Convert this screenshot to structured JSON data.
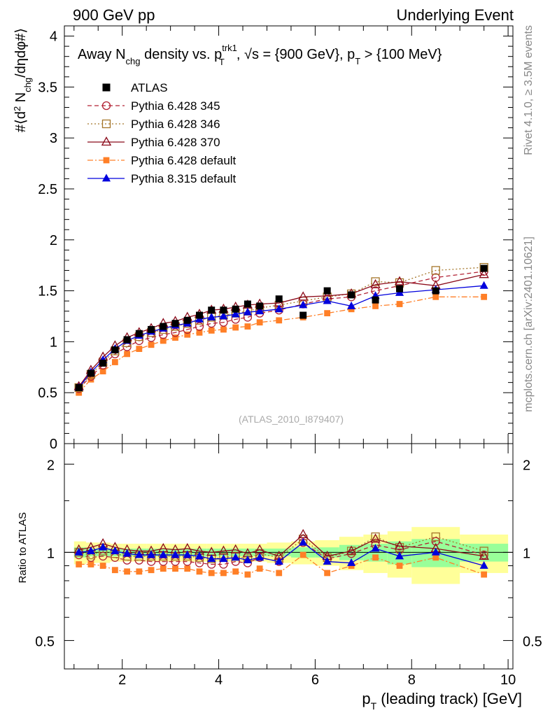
{
  "header": {
    "left": "900 GeV pp",
    "right": "Underlying Event"
  },
  "side": {
    "version": "Rivet 4.1.0, ≥ 3.5M events",
    "site": "mcplots.cern.ch [arXiv:2401.10621]"
  },
  "chart_data": [
    {
      "type": "scatter",
      "title": "Away N_chg density vs. p_T^trk1, √s = {900 GeV}, p_T > {100 MeV}",
      "title_parts": {
        "t1": "Away N",
        "t1sub": "chg",
        "t2": " density vs. p",
        "t2sup": "trk1",
        "t2sub": "T",
        "t3": ", √s = {900 GeV}, p",
        "t3sub": "T",
        "t4": " > {100 MeV}"
      },
      "ylabel": "#⟨d² N_chg/dηdφ#⟩",
      "ylabel_parts": {
        "a": "#⟨d",
        "asup": "2",
        "b": " N",
        "bsub": "chg",
        "c": "/dηdφ#⟩"
      },
      "analysis": "(ATLAS_2010_I879407)",
      "xlim": [
        0.8,
        10.1
      ],
      "ylim": [
        0,
        4.1
      ],
      "yticks": [
        "0",
        "0.5",
        "1",
        "1.5",
        "2",
        "2.5",
        "3",
        "3.5",
        "4"
      ],
      "x": [
        1.1,
        1.35,
        1.6,
        1.85,
        2.1,
        2.35,
        2.6,
        2.85,
        3.1,
        3.35,
        3.6,
        3.85,
        4.1,
        4.35,
        4.6,
        4.85,
        5.25,
        5.75,
        6.25,
        6.75,
        7.25,
        7.75,
        8.5,
        9.5
      ],
      "series": [
        {
          "name": "ATLAS",
          "color": "#000000",
          "marker": "square",
          "line": "none",
          "values": [
            0.55,
            0.69,
            0.79,
            0.92,
            1.02,
            1.08,
            1.12,
            1.15,
            1.18,
            1.21,
            1.26,
            1.31,
            1.31,
            1.32,
            1.37,
            1.35,
            1.42,
            1.26,
            1.5,
            1.46,
            1.41,
            1.52,
            1.5,
            1.72
          ]
        },
        {
          "name": "Pythia 6.428 345",
          "color": "#b22234",
          "marker": "circle-open",
          "line": "dashed",
          "values": [
            0.54,
            0.66,
            0.77,
            0.88,
            0.95,
            1.01,
            1.04,
            1.07,
            1.09,
            1.12,
            1.15,
            1.18,
            1.19,
            1.22,
            1.24,
            1.28,
            1.31,
            1.37,
            1.42,
            1.44,
            1.5,
            1.55,
            1.63,
            1.69
          ]
        },
        {
          "name": "Pythia 6.428 346",
          "color": "#a5762a",
          "marker": "square-open",
          "line": "dotted",
          "values": [
            0.55,
            0.68,
            0.8,
            0.91,
            0.99,
            1.05,
            1.09,
            1.12,
            1.15,
            1.18,
            1.21,
            1.24,
            1.26,
            1.28,
            1.3,
            1.33,
            1.36,
            1.4,
            1.44,
            1.47,
            1.59,
            1.58,
            1.7,
            1.73
          ]
        },
        {
          "name": "Pythia 6.428 370",
          "color": "#8b0a1a",
          "marker": "triangle-open",
          "line": "solid",
          "values": [
            0.56,
            0.72,
            0.85,
            0.96,
            1.04,
            1.09,
            1.13,
            1.18,
            1.2,
            1.24,
            1.27,
            1.31,
            1.32,
            1.34,
            1.36,
            1.37,
            1.38,
            1.44,
            1.45,
            1.47,
            1.56,
            1.59,
            1.55,
            1.66
          ]
        },
        {
          "name": "Pythia 6.428 default",
          "color": "#ff7f27",
          "marker": "square-small",
          "line": "dashdot",
          "values": [
            0.5,
            0.63,
            0.71,
            0.8,
            0.88,
            0.93,
            0.97,
            1.01,
            1.04,
            1.07,
            1.09,
            1.11,
            1.12,
            1.14,
            1.15,
            1.19,
            1.21,
            1.24,
            1.28,
            1.32,
            1.35,
            1.37,
            1.44,
            1.44
          ]
        },
        {
          "name": "Pythia 8.315 default",
          "color": "#0000dd",
          "marker": "triangle",
          "line": "solid",
          "values": [
            0.55,
            0.7,
            0.82,
            0.93,
            1.01,
            1.06,
            1.1,
            1.13,
            1.16,
            1.18,
            1.22,
            1.24,
            1.25,
            1.27,
            1.29,
            1.3,
            1.32,
            1.36,
            1.4,
            1.35,
            1.45,
            1.48,
            1.51,
            1.55
          ]
        }
      ]
    },
    {
      "type": "scatter",
      "ylabel": "Ratio to ATLAS",
      "xlabel": "p_T (leading track) [GeV]",
      "xlabel_parts": {
        "a": "p",
        "asub": "T",
        "b": " (leading track) [GeV]"
      },
      "xlim": [
        0.8,
        10.1
      ],
      "ylim": [
        0.4,
        2.35
      ],
      "yticks": [
        "0.5",
        "1",
        "2"
      ],
      "xticks": [
        "2",
        "4",
        "6",
        "8",
        "10"
      ],
      "bin_edges": [
        1.0,
        1.25,
        1.5,
        1.75,
        2.0,
        2.25,
        2.5,
        2.75,
        3.0,
        3.25,
        3.5,
        3.75,
        4.0,
        4.25,
        4.5,
        4.75,
        5.0,
        5.5,
        6.0,
        6.5,
        7.0,
        7.5,
        8.0,
        9.0,
        10.0
      ],
      "band_stat": [
        0.04,
        0.03,
        0.03,
        0.03,
        0.03,
        0.03,
        0.03,
        0.03,
        0.03,
        0.03,
        0.03,
        0.03,
        0.03,
        0.03,
        0.03,
        0.03,
        0.03,
        0.04,
        0.04,
        0.06,
        0.07,
        0.09,
        0.11,
        0.07
      ],
      "band_total": [
        0.09,
        0.08,
        0.08,
        0.07,
        0.07,
        0.07,
        0.07,
        0.07,
        0.07,
        0.07,
        0.07,
        0.07,
        0.07,
        0.07,
        0.07,
        0.07,
        0.08,
        0.09,
        0.1,
        0.13,
        0.15,
        0.18,
        0.22,
        0.15
      ],
      "series": [
        {
          "name": "Pythia 6.428 345",
          "values": [
            0.98,
            0.96,
            0.97,
            0.96,
            0.94,
            0.94,
            0.93,
            0.93,
            0.93,
            0.93,
            0.92,
            0.91,
            0.91,
            0.93,
            0.92,
            0.96,
            0.93,
            1.08,
            0.95,
            0.99,
            1.06,
            1.02,
            1.09,
            0.98
          ]
        },
        {
          "name": "Pythia 6.428 346",
          "values": [
            1.0,
            0.98,
            1.01,
            0.99,
            0.97,
            0.97,
            0.97,
            0.97,
            0.97,
            0.97,
            0.96,
            0.95,
            0.96,
            0.97,
            0.95,
            0.99,
            0.96,
            1.11,
            0.96,
            1.01,
            1.13,
            1.04,
            1.13,
            1.01
          ]
        },
        {
          "name": "Pythia 6.428 370",
          "values": [
            1.02,
            1.04,
            1.07,
            1.04,
            1.02,
            1.01,
            1.01,
            1.03,
            1.02,
            1.03,
            1.01,
            1.0,
            1.01,
            1.02,
            0.99,
            1.02,
            0.97,
            1.15,
            0.97,
            1.01,
            1.11,
            1.05,
            1.03,
            0.97
          ]
        },
        {
          "name": "Pythia 6.428 default",
          "values": [
            0.91,
            0.91,
            0.9,
            0.87,
            0.86,
            0.86,
            0.87,
            0.88,
            0.88,
            0.88,
            0.86,
            0.85,
            0.85,
            0.86,
            0.84,
            0.88,
            0.85,
            0.98,
            0.85,
            0.9,
            0.96,
            0.9,
            0.96,
            0.84
          ]
        },
        {
          "name": "Pythia 8.315 default",
          "values": [
            1.0,
            1.01,
            1.04,
            1.01,
            0.99,
            0.98,
            0.98,
            0.98,
            0.98,
            0.98,
            0.97,
            0.95,
            0.95,
            0.96,
            0.94,
            0.96,
            0.93,
            1.08,
            0.93,
            0.92,
            1.03,
            0.97,
            1.0,
            0.9
          ]
        }
      ]
    }
  ]
}
